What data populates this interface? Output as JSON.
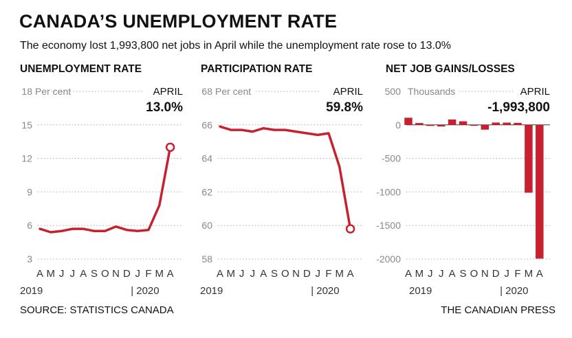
{
  "header": {
    "title": "CANADA’S UNEMPLOYMENT RATE",
    "subtitle": "The economy lost 1,993,800 net jobs in April while the unemployment rate rose to 13.0%"
  },
  "footer": {
    "source": "SOURCE: STATISTICS CANADA",
    "credit": "THE CANADIAN PRESS"
  },
  "colors": {
    "accent": "#c8202f",
    "grid": "#aaaaaa",
    "muted": "#888888"
  },
  "chart_data": [
    {
      "type": "line",
      "title": "UNEMPLOYMENT RATE",
      "unit_label": "Per cent",
      "callout_label": "APRIL",
      "callout_value": "13.0%",
      "categories": [
        "A",
        "M",
        "J",
        "J",
        "A",
        "S",
        "O",
        "N",
        "D",
        "J",
        "F",
        "M",
        "A"
      ],
      "year_labels": [
        "2019",
        "| 2020"
      ],
      "ylim": [
        3,
        18
      ],
      "yticks": [
        3,
        6,
        9,
        12,
        15,
        18
      ],
      "values": [
        5.7,
        5.4,
        5.5,
        5.7,
        5.7,
        5.5,
        5.5,
        5.9,
        5.6,
        5.5,
        5.6,
        7.8,
        13.0
      ]
    },
    {
      "type": "line",
      "title": "PARTICIPATION RATE",
      "unit_label": "Per cent",
      "callout_label": "APRIL",
      "callout_value": "59.8%",
      "categories": [
        "A",
        "M",
        "J",
        "J",
        "A",
        "S",
        "O",
        "N",
        "D",
        "J",
        "F",
        "M",
        "A"
      ],
      "year_labels": [
        "2019",
        "| 2020"
      ],
      "ylim": [
        58,
        68
      ],
      "yticks": [
        58,
        60,
        62,
        64,
        66,
        68
      ],
      "values": [
        65.9,
        65.7,
        65.7,
        65.6,
        65.8,
        65.7,
        65.7,
        65.6,
        65.5,
        65.4,
        65.5,
        63.5,
        59.8
      ]
    },
    {
      "type": "bar",
      "title": "NET JOB GAINS/LOSSES",
      "unit_label": "Thousands",
      "callout_label": "APRIL",
      "callout_value": "-1,993,800",
      "categories": [
        "A",
        "M",
        "J",
        "J",
        "A",
        "S",
        "O",
        "N",
        "D",
        "J",
        "F",
        "M",
        "A"
      ],
      "year_labels": [
        "2019",
        "| 2020"
      ],
      "ylim": [
        -2000,
        500
      ],
      "yticks": [
        -2000,
        -1500,
        -1000,
        -500,
        0,
        500
      ],
      "values": [
        107,
        28,
        -2,
        -24,
        81,
        54,
        2,
        -71,
        35,
        34,
        30,
        -1011,
        -1994
      ]
    }
  ]
}
